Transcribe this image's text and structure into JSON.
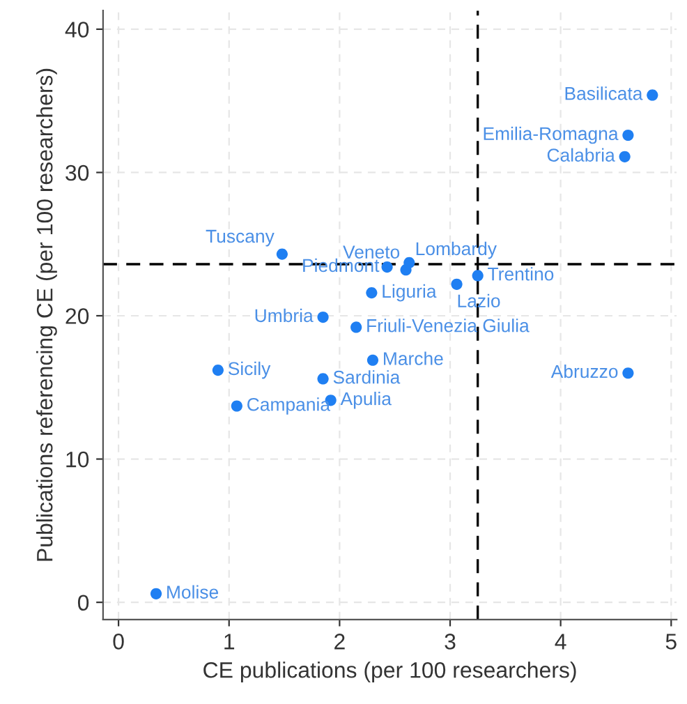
{
  "chart_data": {
    "type": "scatter",
    "xlabel": "CE publications (per 100 researchers)",
    "ylabel": "Publications referencing CE (per 100 researchers)",
    "series": [
      {
        "color": "#1f7ff2",
        "x": [
          4.83,
          4.61,
          4.58,
          1.48,
          2.43,
          2.6,
          2.63,
          2.29,
          3.06,
          3.25,
          1.85,
          2.15,
          2.3,
          0.9,
          1.85,
          1.92,
          1.07,
          4.61,
          0.34
        ],
        "values": [
          35.4,
          32.6,
          31.1,
          24.3,
          23.4,
          23.2,
          23.7,
          21.6,
          22.2,
          22.8,
          19.9,
          19.2,
          16.9,
          16.2,
          15.6,
          14.1,
          13.7,
          16.0,
          0.6
        ]
      }
    ],
    "annotations": [
      {
        "text": "Basilicata",
        "x": 4.83,
        "y": 35.4
      },
      {
        "text": "Emilia-Romagna",
        "x": 4.61,
        "y": 32.6
      },
      {
        "text": "Calabria",
        "x": 4.58,
        "y": 31.1
      },
      {
        "text": "Tuscany",
        "x": 1.48,
        "y": 24.3
      },
      {
        "text": "Piedmont",
        "x": 2.43,
        "y": 23.4
      },
      {
        "text": "Veneto",
        "x": 2.6,
        "y": 23.2
      },
      {
        "text": "Lombardy",
        "x": 2.63,
        "y": 23.7
      },
      {
        "text": "Liguria",
        "x": 2.29,
        "y": 21.6
      },
      {
        "text": "Lazio",
        "x": 3.06,
        "y": 22.2
      },
      {
        "text": "Trentino",
        "x": 3.25,
        "y": 22.8
      },
      {
        "text": "Umbria",
        "x": 1.85,
        "y": 19.9
      },
      {
        "text": "Friuli-Venezia Giulia",
        "x": 2.15,
        "y": 19.2
      },
      {
        "text": "Marche",
        "x": 2.3,
        "y": 16.9
      },
      {
        "text": "Sicily",
        "x": 0.9,
        "y": 16.2
      },
      {
        "text": "Sardinia",
        "x": 1.85,
        "y": 15.6
      },
      {
        "text": "Apulia",
        "x": 1.92,
        "y": 14.1
      },
      {
        "text": "Campania",
        "x": 1.07,
        "y": 13.7
      },
      {
        "text": "Abruzzo",
        "x": 4.61,
        "y": 16.0
      },
      {
        "text": "Molise",
        "x": 0.34,
        "y": 0.6
      }
    ],
    "ref_lines": [
      {
        "axis": "x",
        "value": 3.25,
        "color": "#000000",
        "line_style": "dashed"
      },
      {
        "axis": "y",
        "value": 23.6,
        "color": "#000000",
        "line_style": "dashed"
      }
    ],
    "xlim": [
      -0.14,
      5.05
    ],
    "ylim": [
      -1.2,
      41.3
    ],
    "xticks": [
      0,
      1,
      2,
      3,
      4,
      5
    ],
    "yticks": [
      0,
      10,
      20,
      30,
      40
    ],
    "grid": true,
    "marker": "circle"
  }
}
